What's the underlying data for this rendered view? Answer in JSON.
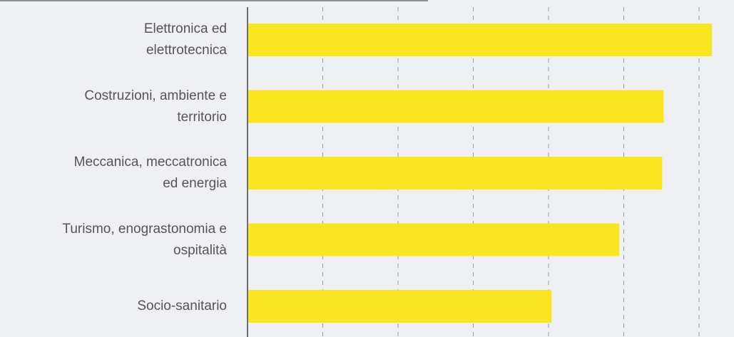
{
  "chart_data": {
    "type": "bar",
    "orientation": "horizontal",
    "categories": [
      "Elettronica ed\nelettrotecnica",
      "Costruzioni, ambiente e\nterritorio",
      "Meccanica, meccatronica\ned energia",
      "Turismo, enograstonomia e\nospitalità",
      "Socio-sanitario"
    ],
    "values": [
      6.17,
      5.53,
      5.51,
      4.94,
      4.04
    ],
    "color": "#f7e620",
    "xlim": [
      0,
      6.3
    ],
    "xticks": [
      0,
      1,
      2,
      3,
      4,
      5,
      6
    ],
    "grid": true
  }
}
